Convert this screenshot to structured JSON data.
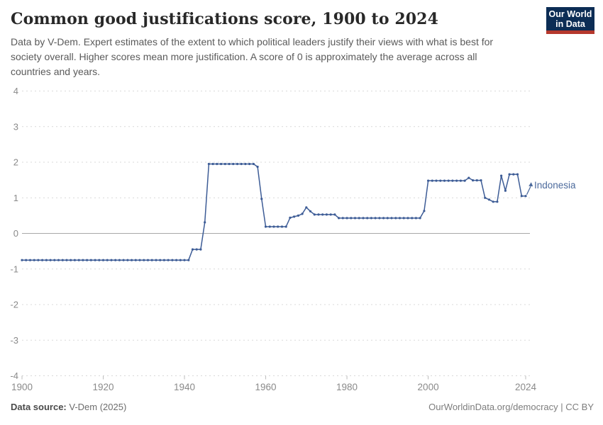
{
  "header": {
    "title": "Common good justifications score, 1900 to 2024",
    "subtitle_lines": [
      "Data by V-Dem. Expert estimates of the extent to which political leaders justify their views with what is best for",
      "society overall. Higher scores mean more justification. A score of 0 is approximately the average across all",
      "countries and years."
    ],
    "logo": {
      "line1": "Our World",
      "line2": "in Data"
    }
  },
  "footer": {
    "source_label": "Data source:",
    "source_value": " V-Dem (2025)",
    "credit": "OurWorldinData.org/democracy | CC BY"
  },
  "colors": {
    "line": "#3d5c96",
    "series_label": "#4c6a9c",
    "gridline": "#d9d9d9",
    "zero_line": "#a8a8a8",
    "tick_label": "#8a8a8a",
    "axis_tick": "#bdbdbd",
    "logo_bg": "#0c2d55",
    "logo_red": "#b5382d"
  },
  "chart_data": {
    "type": "line",
    "title": "Common good justifications score, 1900 to 2024",
    "xlabel": "",
    "ylabel": "",
    "x_start": 1900,
    "x_end": 2024,
    "xticks": [
      1900,
      1920,
      1940,
      1960,
      1980,
      2000,
      2024
    ],
    "yticks": [
      -4,
      -3,
      -2,
      -1,
      0,
      1,
      2,
      3,
      4
    ],
    "ylim": [
      -4,
      4
    ],
    "grid": "horizontal-dashed",
    "legend_position": "end-of-line-label",
    "entity_label": "Indonesia",
    "series": [
      {
        "name": "Indonesia",
        "color": "#3d5c96",
        "values": [
          -0.75,
          -0.75,
          -0.75,
          -0.75,
          -0.75,
          -0.75,
          -0.75,
          -0.75,
          -0.75,
          -0.75,
          -0.75,
          -0.75,
          -0.75,
          -0.75,
          -0.75,
          -0.75,
          -0.75,
          -0.75,
          -0.75,
          -0.75,
          -0.75,
          -0.75,
          -0.75,
          -0.75,
          -0.75,
          -0.75,
          -0.75,
          -0.75,
          -0.75,
          -0.75,
          -0.75,
          -0.75,
          -0.75,
          -0.75,
          -0.75,
          -0.75,
          -0.75,
          -0.75,
          -0.75,
          -0.75,
          -0.75,
          -0.75,
          -0.45,
          -0.45,
          -0.45,
          0.31,
          1.95,
          1.95,
          1.95,
          1.95,
          1.95,
          1.95,
          1.95,
          1.95,
          1.95,
          1.95,
          1.95,
          1.95,
          1.87,
          0.97,
          0.19,
          0.19,
          0.19,
          0.19,
          0.19,
          0.19,
          0.44,
          0.47,
          0.5,
          0.55,
          0.73,
          0.62,
          0.53,
          0.53,
          0.53,
          0.53,
          0.53,
          0.53,
          0.43,
          0.43,
          0.43,
          0.43,
          0.43,
          0.43,
          0.43,
          0.43,
          0.43,
          0.43,
          0.43,
          0.43,
          0.43,
          0.43,
          0.43,
          0.43,
          0.43,
          0.43,
          0.43,
          0.43,
          0.43,
          0.63,
          1.48,
          1.48,
          1.48,
          1.48,
          1.48,
          1.48,
          1.48,
          1.48,
          1.48,
          1.48,
          1.56,
          1.49,
          1.49,
          1.49,
          1.0,
          0.95,
          0.89,
          0.89,
          1.62,
          1.2,
          1.66,
          1.66,
          1.66,
          1.05,
          1.05
        ]
      }
    ]
  }
}
